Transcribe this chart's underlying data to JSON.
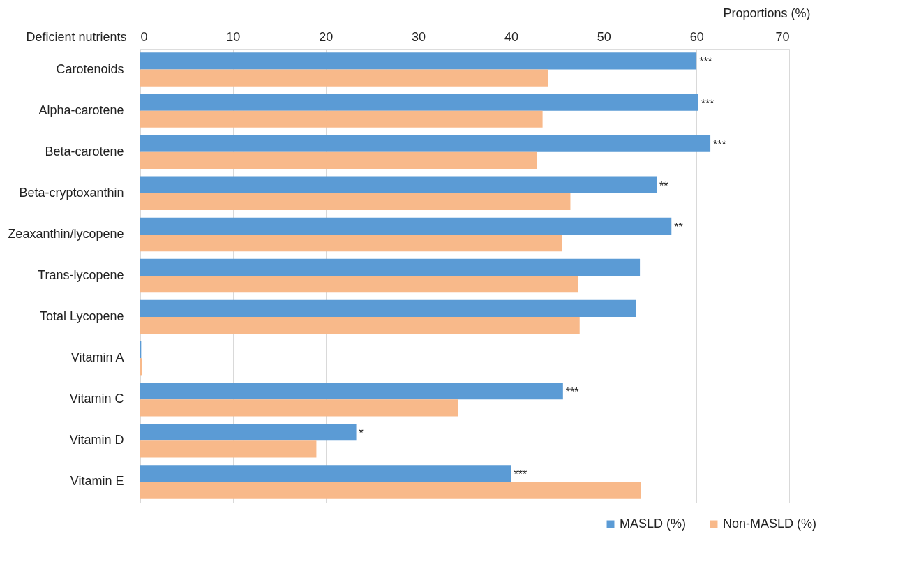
{
  "chart_data": {
    "type": "bar",
    "orientation": "horizontal",
    "xlabel": "Proportions (%)",
    "ylabel": "Deficient nutrients",
    "categories": [
      "Carotenoids",
      "Alpha-carotene",
      "Beta-carotene",
      "Beta-cryptoxanthin",
      "Zeaxanthin/lycopene",
      "Trans-lycopene",
      "Total Lycopene",
      "Vitamin A",
      "Vitamin C",
      "Vitamin D",
      "Vitamin E"
    ],
    "series": [
      {
        "name": "MASLD (%)",
        "color": "#5b9bd5",
        "values": [
          60.0,
          60.2,
          61.5,
          55.7,
          57.3,
          53.9,
          53.5,
          0.1,
          45.6,
          23.3,
          40.0
        ]
      },
      {
        "name": "Non-MASLD (%)",
        "color": "#f8b98a",
        "values": [
          44.0,
          43.4,
          42.8,
          46.4,
          45.5,
          47.2,
          47.4,
          0.2,
          34.3,
          19.0,
          54.0
        ]
      }
    ],
    "xlim": [
      0,
      70
    ],
    "xticks": [
      0,
      10,
      20,
      30,
      40,
      50,
      60,
      70
    ],
    "grid": "x",
    "legend": "bottom right",
    "annotations": [
      {
        "text": "***",
        "x": 60.0,
        "y": "Carotenoids"
      },
      {
        "text": "***",
        "x": 60.2,
        "y": "Alpha-carotene"
      },
      {
        "text": "***",
        "x": 61.5,
        "y": "Beta-carotene"
      },
      {
        "text": "**",
        "x": 55.7,
        "y": "Beta-cryptoxanthin"
      },
      {
        "text": "**",
        "x": 57.3,
        "y": "Zeaxanthin/lycopene"
      },
      {
        "text": "***",
        "x": 45.6,
        "y": "Vitamin C"
      },
      {
        "text": "*",
        "x": 23.3,
        "y": "Vitamin D"
      },
      {
        "text": "***",
        "x": 40.0,
        "y": "Vitamin E"
      }
    ]
  }
}
